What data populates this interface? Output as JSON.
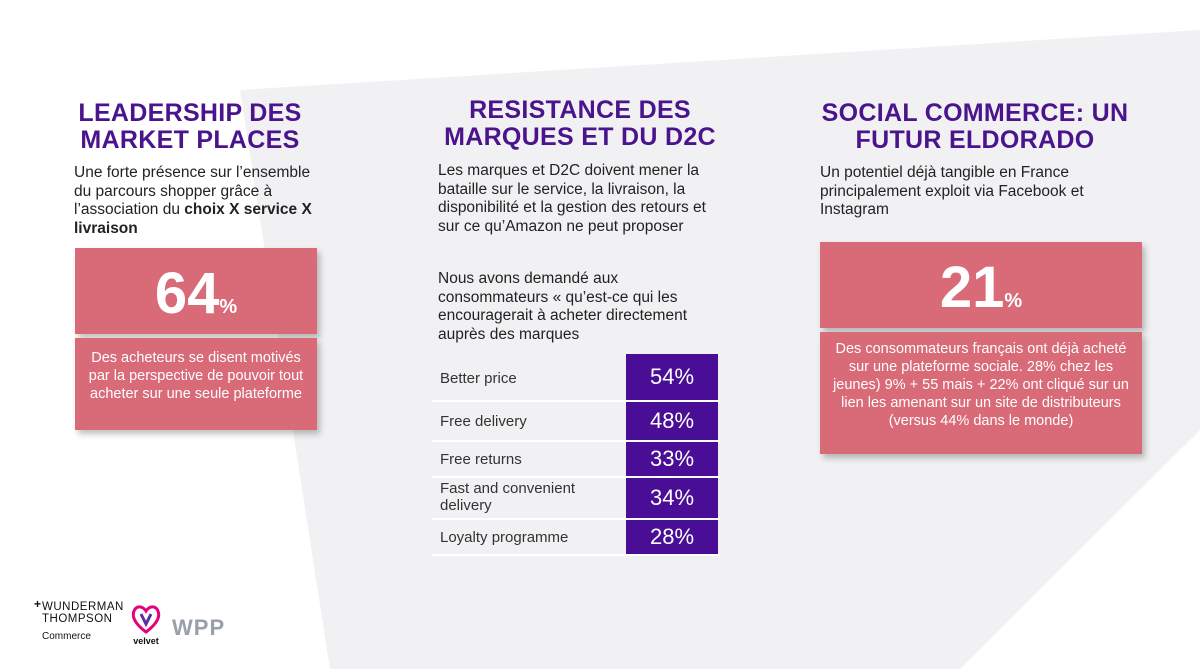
{
  "column1": {
    "title_line1": "LEADERSHIP DES",
    "title_line2": "MARKET PLACES",
    "text_plain": "Une forte présence sur l’ensemble du parcours shopper grâce à l’association du ",
    "text_bold": "choix X service X livraison",
    "stat_value": "64",
    "stat_unit": "%",
    "stat_desc": "Des acheteurs se disent motivés par la perspective de pouvoir tout acheter sur une seule plateforme"
  },
  "column2": {
    "title_line1": "RESISTANCE DES",
    "title_line2": "MARQUES ET DU D2C",
    "text1": "Les marques et D2C doivent mener la bataille sur le service, la livraison, la disponibilité et la gestion des retours et sur ce qu’Amazon ne peut proposer",
    "text2": "Nous avons demandé aux consommateurs « qu’est-ce qui les encouragerait à acheter directement auprès des marques",
    "rows": [
      {
        "label": "Better price",
        "value": "54%"
      },
      {
        "label": "Free delivery",
        "value": "48%"
      },
      {
        "label": "Free returns",
        "value": "33%"
      },
      {
        "label": "Fast and convenient delivery",
        "value": "34%"
      },
      {
        "label": "Loyalty programme",
        "value": "28%"
      }
    ]
  },
  "column3": {
    "title_line1": "SOCIAL COMMERCE: UN",
    "title_line2": "FUTUR ELDORADO",
    "text": "Un potentiel déjà tangible en France principalement exploit via Facebook et Instagram",
    "stat_value": "21",
    "stat_unit": "%",
    "stat_desc": "Des consommateurs  français ont déjà acheté sur une plateforme sociale. 28% chez les jeunes) 9% + 55 mais + 22% ont cliqué sur un lien les amenant sur un site de distributeurs (versus 44% dans le monde)"
  },
  "logos": {
    "wunderman_line1": "WUNDERMAN",
    "wunderman_line2": "THOMPSON",
    "wunderman_line3": "Commerce",
    "velvet": "velvet",
    "wpp": "WPP"
  },
  "colors": {
    "title": "#4a148c",
    "pink": "#d96a78",
    "purple": "#4a0e96"
  }
}
